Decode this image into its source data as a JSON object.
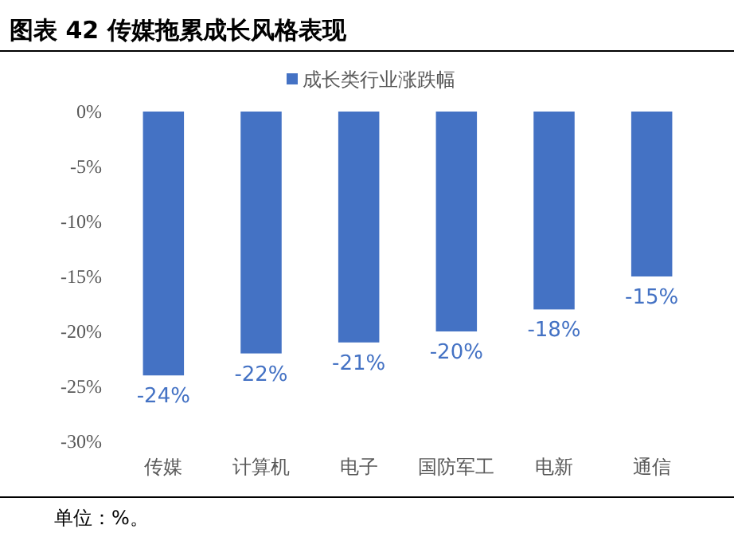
{
  "chart_data": {
    "type": "bar",
    "title": "图表 42  传媒拖累成长风格表现",
    "categories": [
      "传媒",
      "计算机",
      "电子",
      "国防军工",
      "电新",
      "通信"
    ],
    "series": [
      {
        "name": "成长类行业涨跌幅",
        "color": "#4472c4",
        "values": [
          -24,
          -22,
          -21,
          -20,
          -18,
          -15
        ],
        "value_labels": [
          "-24%",
          "-22%",
          "-21%",
          "-20%",
          "-18%",
          "-15%"
        ]
      }
    ],
    "ylim": [
      -30,
      0
    ],
    "yticks": [
      {
        "value": 0,
        "label": "0%"
      },
      {
        "value": -5,
        "label": "-5%"
      },
      {
        "value": -10,
        "label": "-10%"
      },
      {
        "value": -15,
        "label": "-15%"
      },
      {
        "value": -20,
        "label": "-20%"
      },
      {
        "value": -25,
        "label": "-25%"
      },
      {
        "value": -30,
        "label": "-30%"
      }
    ],
    "legend": "top",
    "grid": false,
    "annotations": [
      "单位：%。"
    ]
  }
}
